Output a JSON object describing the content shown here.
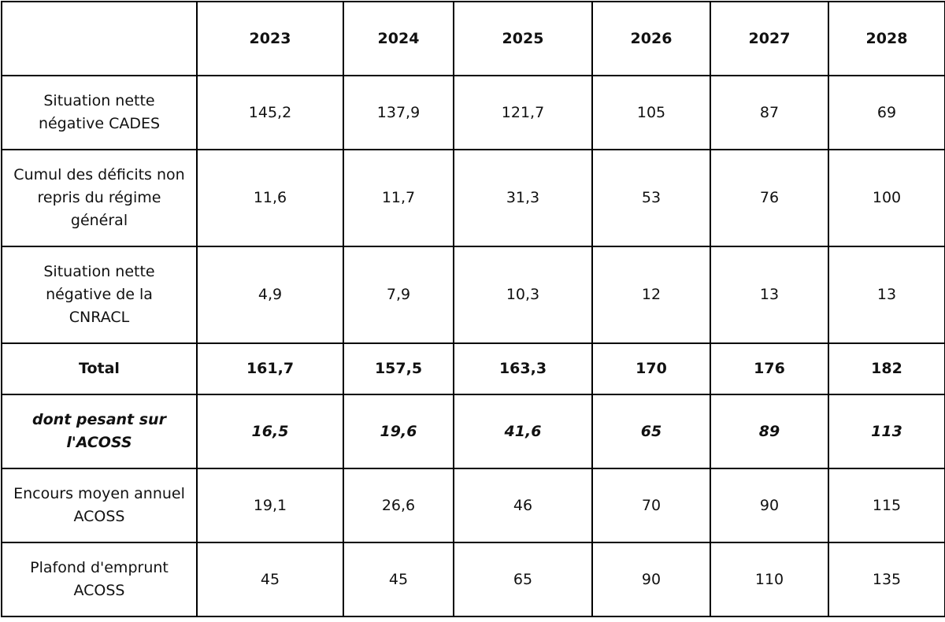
{
  "table": {
    "header": {
      "label": "",
      "years": [
        "2023",
        "2024",
        "2025",
        "2026",
        "2027",
        "2028"
      ]
    },
    "rows": [
      {
        "label": "Situation nette négative CADES",
        "values": [
          "145,2",
          "137,9",
          "121,7",
          "105",
          "87",
          "69"
        ]
      },
      {
        "label": "Cumul des déficits non repris du régime général",
        "values": [
          "11,6",
          "11,7",
          "31,3",
          "53",
          "76",
          "100"
        ]
      },
      {
        "label": "Situation nette négative de la CNRACL",
        "values": [
          "4,9",
          "7,9",
          "10,3",
          "12",
          "13",
          "13"
        ]
      },
      {
        "label": "Total",
        "values": [
          "161,7",
          "157,5",
          "163,3",
          "170",
          "176",
          "182"
        ]
      },
      {
        "label": "dont pesant sur l'ACOSS",
        "values": [
          "16,5",
          "19,6",
          "41,6",
          "65",
          "89",
          "113"
        ]
      },
      {
        "label": "Encours moyen annuel ACOSS",
        "values": [
          "19,1",
          "26,6",
          "46",
          "70",
          "90",
          "115"
        ]
      },
      {
        "label": "Plafond d'emprunt ACOSS",
        "values": [
          "45",
          "45",
          "65",
          "90",
          "110",
          "135"
        ]
      }
    ]
  }
}
